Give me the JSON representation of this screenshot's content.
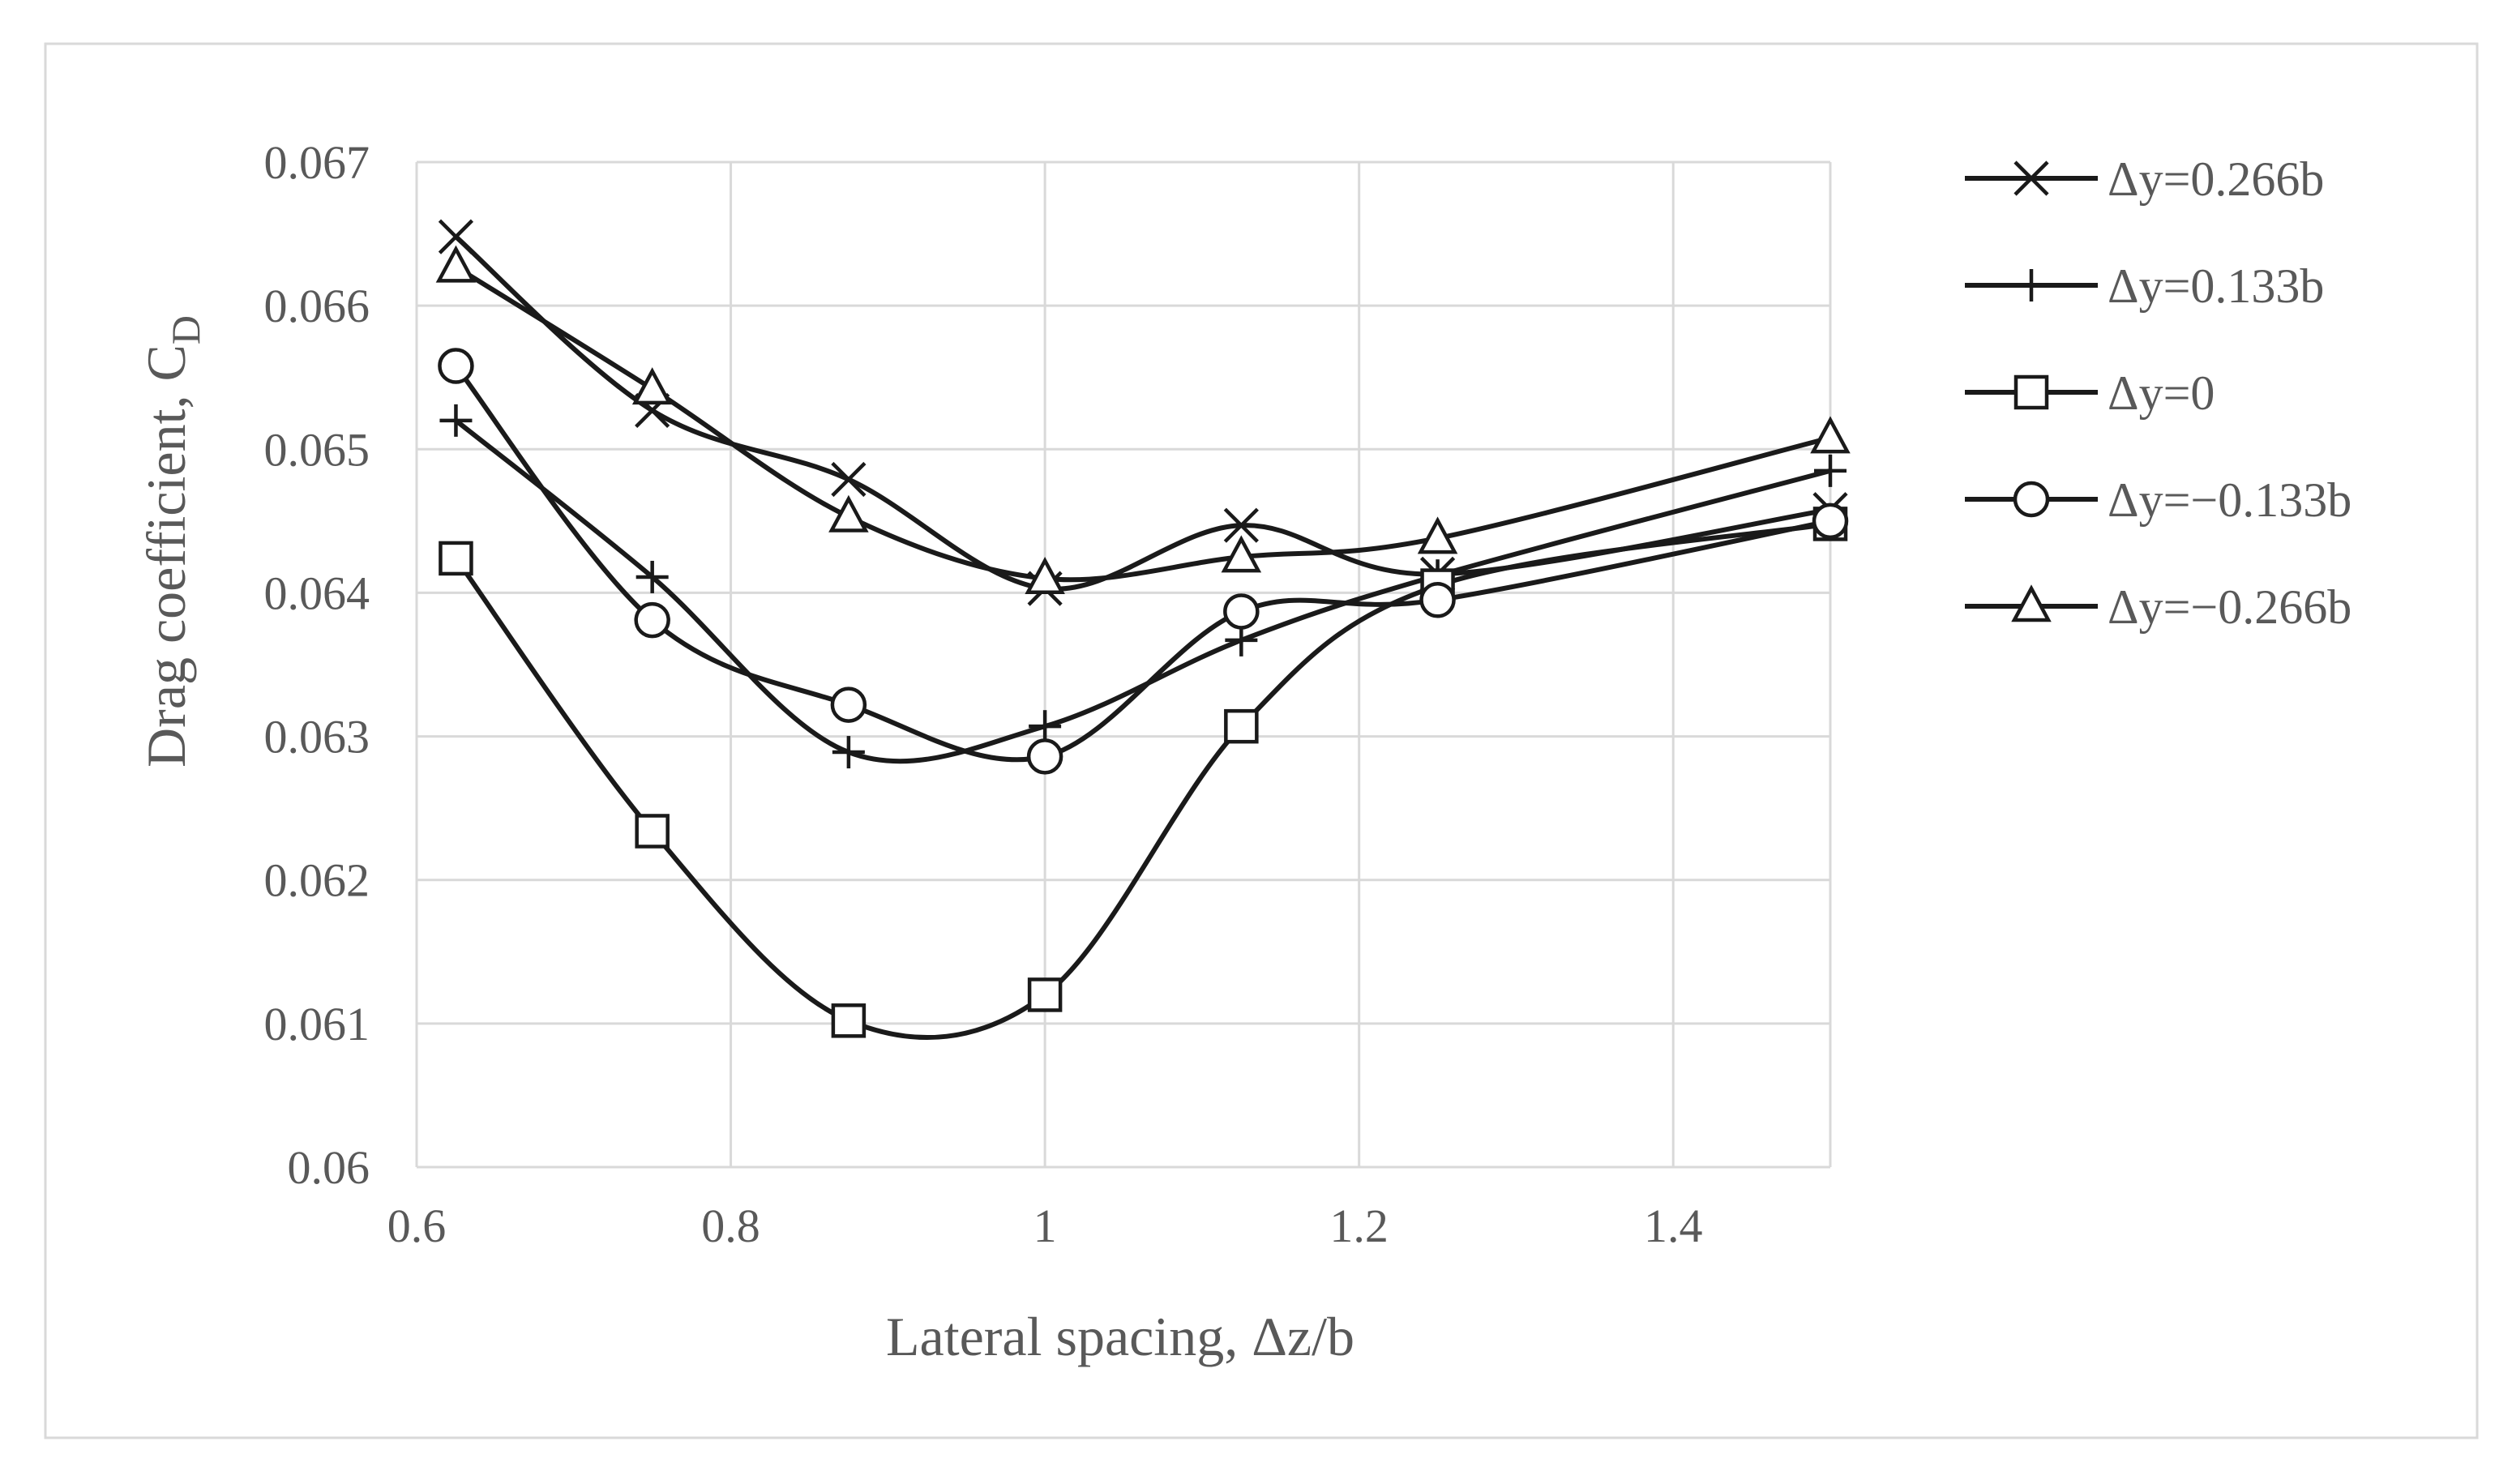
{
  "chart_data": {
    "type": "line",
    "title": "",
    "xlabel": "Lateral spacing, Δz/b",
    "ylabel": {
      "main": "Drag coefficient, C",
      "subscript": "D"
    },
    "xlim": [
      0.6,
      1.5
    ],
    "ylim": [
      0.06,
      0.067
    ],
    "x_ticks": [
      "0.6",
      "0.8",
      "1",
      "1.2",
      "1.4"
    ],
    "x_tick_values": [
      0.6,
      0.8,
      1.0,
      1.2,
      1.4
    ],
    "y_ticks": [
      "0.06",
      "0.061",
      "0.062",
      "0.063",
      "0.064",
      "0.065",
      "0.066",
      "0.067"
    ],
    "y_tick_values": [
      0.06,
      0.061,
      0.062,
      0.063,
      0.064,
      0.065,
      0.066,
      0.067
    ],
    "grid": true,
    "smooth": true,
    "legend_position": "right",
    "x": [
      0.625,
      0.75,
      0.875,
      1.0,
      1.125,
      1.25,
      1.5
    ],
    "series": [
      {
        "name": "Δy=0.266b",
        "marker": "x",
        "values": [
          0.06648,
          0.06527,
          0.06479,
          0.06403,
          0.06447,
          0.06413,
          0.06458
        ]
      },
      {
        "name": "Δy=0.133b",
        "marker": "plus",
        "values": [
          0.0652,
          0.06411,
          0.06289,
          0.06307,
          0.06367,
          0.06412,
          0.06485
        ]
      },
      {
        "name": "Δy=0",
        "marker": "square",
        "values": [
          0.06424,
          0.06234,
          0.06102,
          0.0612,
          0.06307,
          0.06405,
          0.06448
        ]
      },
      {
        "name": "Δy=−0.133b",
        "marker": "circle",
        "values": [
          0.06558,
          0.06381,
          0.06322,
          0.06286,
          0.06387,
          0.06395,
          0.0645
        ]
      },
      {
        "name": "Δy=−0.266b",
        "marker": "triangle",
        "values": [
          0.06627,
          0.06542,
          0.06453,
          0.0641,
          0.06425,
          0.06438,
          0.06508
        ]
      }
    ],
    "colors": {
      "line": "#1a1a1a",
      "grid": "#d9d9d9",
      "text": "#595959",
      "border": "#d9d9d9"
    }
  }
}
